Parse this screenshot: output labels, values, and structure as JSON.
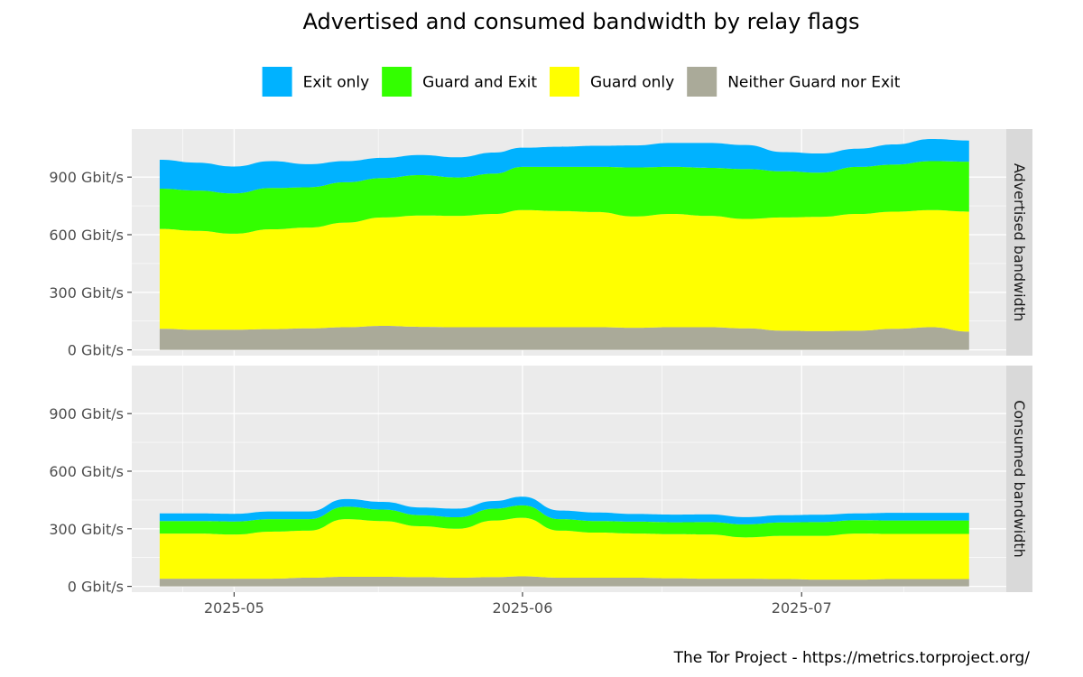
{
  "chart_data": {
    "type": "area",
    "title": "Advertised and consumed bandwidth by relay flags",
    "caption": "The Tor Project - https://metrics.torproject.org/",
    "legend_position": "top",
    "stacked": true,
    "grid": true,
    "y_unit_suffix": " Gbit/s",
    "x": [
      "2025-04-23",
      "2025-04-27",
      "2025-05-01",
      "2025-05-05",
      "2025-05-09",
      "2025-05-13",
      "2025-05-17",
      "2025-05-21",
      "2025-05-25",
      "2025-05-29",
      "2025-06-01",
      "2025-06-05",
      "2025-06-09",
      "2025-06-13",
      "2025-06-17",
      "2025-06-21",
      "2025-06-25",
      "2025-06-29",
      "2025-07-03",
      "2025-07-07",
      "2025-07-11",
      "2025-07-15",
      "2025-07-19"
    ],
    "xlim": [
      "2025-04-20",
      "2025-07-23"
    ],
    "x_ticks": [
      "2025-05-01",
      "2025-06-01",
      "2025-07-01"
    ],
    "x_tick_labels": [
      "2025-05",
      "2025-06",
      "2025-07"
    ],
    "ylim": [
      -30,
      1150
    ],
    "y_ticks": [
      0,
      300,
      600,
      900
    ],
    "y_tick_labels": [
      "0 Gbit/s",
      "300 Gbit/s",
      "600 Gbit/s",
      "900 Gbit/s"
    ],
    "series": [
      {
        "name": "Neither Guard nor Exit",
        "color": "#aaaa99"
      },
      {
        "name": "Guard only",
        "color": "#ffff00"
      },
      {
        "name": "Guard and Exit",
        "color": "#33ff00"
      },
      {
        "name": "Exit only",
        "color": "#00b2ff"
      }
    ],
    "legend_order": [
      "Exit only",
      "Guard and Exit",
      "Guard only",
      "Neither Guard nor Exit"
    ],
    "panels": [
      {
        "label": "Advertised bandwidth",
        "values": {
          "Neither Guard nor Exit": [
            110,
            105,
            105,
            108,
            112,
            118,
            125,
            120,
            118,
            118,
            118,
            118,
            118,
            115,
            118,
            118,
            112,
            100,
            98,
            100,
            110,
            118,
            95
          ],
          "Guard only": [
            520,
            515,
            500,
            520,
            525,
            545,
            565,
            580,
            580,
            590,
            610,
            605,
            600,
            580,
            590,
            580,
            570,
            590,
            595,
            608,
            610,
            610,
            625
          ],
          "Guard and Exit": [
            210,
            210,
            210,
            215,
            210,
            210,
            205,
            210,
            200,
            210,
            225,
            230,
            235,
            255,
            245,
            250,
            260,
            240,
            230,
            245,
            245,
            255,
            260
          ],
          "Exit only": [
            150,
            145,
            140,
            140,
            120,
            110,
            105,
            105,
            105,
            110,
            100,
            105,
            110,
            115,
            125,
            130,
            125,
            100,
            100,
            95,
            105,
            115,
            110
          ]
        }
      },
      {
        "label": "Consumed bandwidth",
        "values": {
          "Neither Guard nor Exit": [
            40,
            40,
            40,
            40,
            45,
            50,
            50,
            48,
            45,
            48,
            52,
            45,
            45,
            45,
            42,
            40,
            40,
            38,
            35,
            35,
            38,
            38,
            38
          ],
          "Guard only": [
            235,
            235,
            230,
            245,
            245,
            300,
            290,
            265,
            255,
            295,
            305,
            245,
            235,
            230,
            230,
            230,
            215,
            225,
            228,
            240,
            235,
            235,
            235
          ],
          "Guard and Exit": [
            65,
            65,
            68,
            65,
            60,
            65,
            60,
            58,
            60,
            62,
            65,
            60,
            60,
            62,
            62,
            65,
            68,
            70,
            72,
            70,
            70,
            70,
            70
          ],
          "Exit only": [
            40,
            40,
            40,
            40,
            40,
            40,
            40,
            40,
            45,
            40,
            45,
            45,
            45,
            40,
            40,
            40,
            38,
            38,
            38,
            35,
            40,
            40,
            40
          ]
        }
      }
    ]
  }
}
